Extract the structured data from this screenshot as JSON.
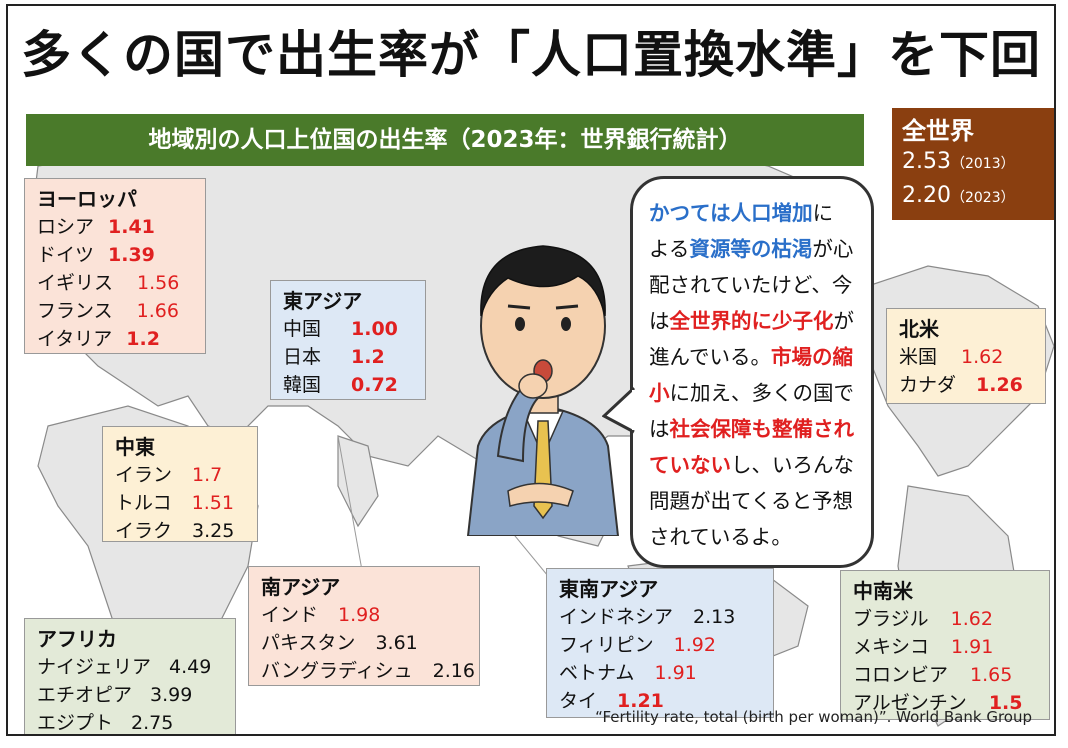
{
  "title": "多くの国で出生率が「人口置換水準」を下回る",
  "subtitle": "地域別の人口上位国の出生率（2023年：世界銀行統計）",
  "world": {
    "heading": "全世界",
    "rows": [
      {
        "value": "2.53",
        "year": "（2013）"
      },
      {
        "value": "2.20",
        "year": "（2023）"
      }
    ]
  },
  "regions": {
    "europe": {
      "name": "ヨーロッパ",
      "items": [
        {
          "country": "ロシア",
          "rate": "1.41"
        },
        {
          "country": "ドイツ",
          "rate": "1.39"
        },
        {
          "country": "イギリス",
          "rate": "1.56"
        },
        {
          "country": "フランス",
          "rate": "1.66"
        },
        {
          "country": "イタリア",
          "rate": "1.2"
        }
      ]
    },
    "east_asia": {
      "name": "東アジア",
      "items": [
        {
          "country": "中国",
          "rate": "1.00"
        },
        {
          "country": "日本",
          "rate": "1.2"
        },
        {
          "country": "韓国",
          "rate": "0.72"
        }
      ]
    },
    "north_america": {
      "name": "北米",
      "items": [
        {
          "country": "米国",
          "rate": "1.62"
        },
        {
          "country": "カナダ",
          "rate": "1.26"
        }
      ]
    },
    "middle_east": {
      "name": "中東",
      "items": [
        {
          "country": "イラン",
          "rate": "1.7"
        },
        {
          "country": "トルコ",
          "rate": "1.51"
        },
        {
          "country": "イラク",
          "rate": "3.25"
        }
      ]
    },
    "south_asia": {
      "name": "南アジア",
      "items": [
        {
          "country": "インド",
          "rate": "1.98"
        },
        {
          "country": "パキスタン",
          "rate": "3.61"
        },
        {
          "country": "バングラディシュ",
          "rate": "2.16"
        }
      ]
    },
    "southeast_asia": {
      "name": "東南アジア",
      "items": [
        {
          "country": "インドネシア",
          "rate": "2.13"
        },
        {
          "country": "フィリピン",
          "rate": "1.92"
        },
        {
          "country": "ベトナム",
          "rate": "1.91"
        },
        {
          "country": "タイ",
          "rate": "1.21"
        }
      ]
    },
    "africa": {
      "name": "アフリカ",
      "items": [
        {
          "country": "ナイジェリア",
          "rate": "4.49"
        },
        {
          "country": "エチオピア",
          "rate": "3.99"
        },
        {
          "country": "エジプト",
          "rate": "2.75"
        }
      ]
    },
    "latin_america": {
      "name": "中南米",
      "items": [
        {
          "country": "ブラジル",
          "rate": "1.62"
        },
        {
          "country": "メキシコ",
          "rate": "1.91"
        },
        {
          "country": "コロンビア",
          "rate": "1.65"
        },
        {
          "country": "アルゼンチン",
          "rate": "1.5"
        }
      ]
    }
  },
  "bubble": [
    {
      "t": "かつては人口増加",
      "s": "bl"
    },
    {
      "t": "に",
      "s": ""
    },
    {
      "t": "よる",
      "s": ""
    },
    {
      "t": "資源等の枯渇",
      "s": "bl"
    },
    {
      "t": "が心配されていたけど、今は",
      "s": ""
    },
    {
      "t": "全世界的に少子化",
      "s": "rd"
    },
    {
      "t": "が進んでいる。",
      "s": ""
    },
    {
      "t": "市場の縮小",
      "s": "rd"
    },
    {
      "t": "に加え、多くの国では",
      "s": ""
    },
    {
      "t": "社会保障も整備されていない",
      "s": "rd"
    },
    {
      "t": "し、いろんな問題が出てくると予想されているよ。",
      "s": ""
    }
  ],
  "source": "“Fertility rate, total (birth per woman)”. World Bank Group",
  "colors": {
    "subtitle_bg": "#4a7a2a",
    "world_bg": "#8a3f10",
    "highlight_red": "#e02020",
    "highlight_blue": "#2a6fc9"
  }
}
